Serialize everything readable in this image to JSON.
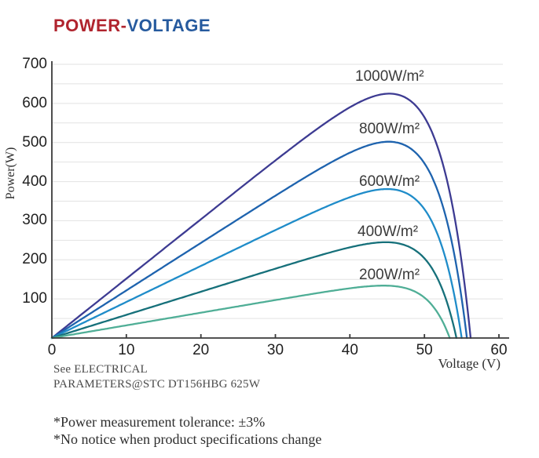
{
  "title": {
    "part1": "POWER-",
    "part2": "VOLTAGE",
    "part1_color": "#b0242e",
    "part2_color": "#265a9e"
  },
  "chart_data": {
    "type": "line",
    "title": "POWER-VOLTAGE",
    "xlabel": "Voltage (V)",
    "ylabel": "Power(W)",
    "xlim": [
      0,
      60
    ],
    "ylim": [
      0,
      700
    ],
    "x_ticks": [
      0,
      10,
      20,
      30,
      40,
      50,
      60
    ],
    "y_ticks": [
      100,
      200,
      300,
      400,
      500,
      600,
      700
    ],
    "grid": {
      "orientation": "horizontal",
      "spacing_w": 50,
      "color": "#e2e2e2"
    },
    "legend_position": "labels-above-curves",
    "series": [
      {
        "name": "1000W/m²",
        "color": "#3d3b92",
        "pmax_w": 625,
        "vmp_v": 45.3,
        "voc_v": 56.2
      },
      {
        "name": "800W/m²",
        "color": "#1e63ae",
        "pmax_w": 502,
        "vmp_v": 45.2,
        "voc_v": 55.7
      },
      {
        "name": "600W/m²",
        "color": "#1f8cc9",
        "pmax_w": 381,
        "vmp_v": 45.0,
        "voc_v": 55.0
      },
      {
        "name": "400W/m²",
        "color": "#16707a",
        "pmax_w": 245,
        "vmp_v": 44.8,
        "voc_v": 54.3
      },
      {
        "name": "200W/m²",
        "color": "#4fae96",
        "pmax_w": 134,
        "vmp_v": 44.5,
        "voc_v": 53.4
      }
    ]
  },
  "footer": {
    "line1": "See ELECTRICAL",
    "line2": "PARAMETERS@STC DT156HBG 625W"
  },
  "notes": [
    "*Power measurement tolerance: ±3%",
    "*No notice when product specifications change"
  ]
}
